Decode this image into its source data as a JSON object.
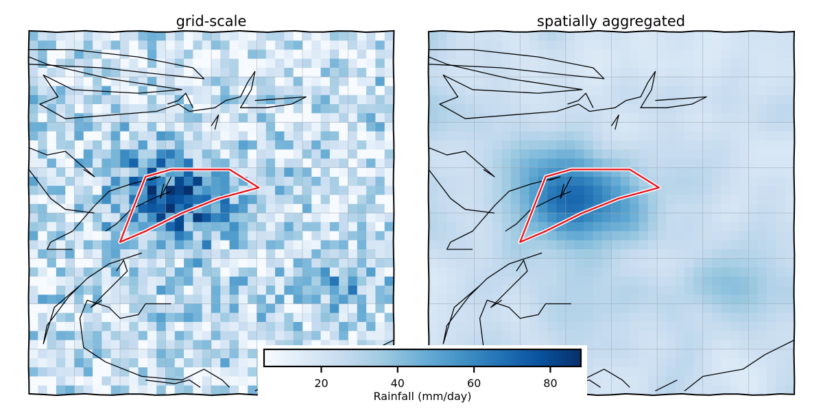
{
  "chart_data": {
    "type": "heatmap",
    "panels": [
      {
        "title": "grid-scale",
        "resolution": "fine"
      },
      {
        "title": "spatially aggregated",
        "resolution": "smoothed"
      }
    ],
    "colorbar": {
      "label": "Rainfall (mm/day)",
      "range": [
        5,
        88
      ],
      "ticks": [
        20,
        40,
        60,
        80
      ],
      "colormap": "Blues",
      "colors": [
        "#f7fbff",
        "#deebf7",
        "#c6dbef",
        "#9ecae1",
        "#6baed6",
        "#4292c6",
        "#2171b5",
        "#08519c",
        "#08306b"
      ]
    },
    "highlight_region": {
      "outline_color": "#e8131b",
      "shape": "polygon"
    },
    "coastline_color": "#000000",
    "grid": true
  }
}
